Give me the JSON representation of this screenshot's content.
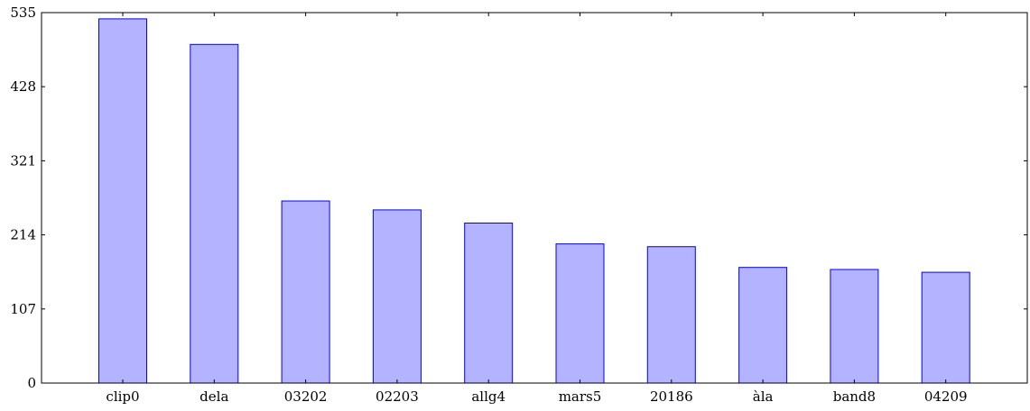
{
  "chart_data": {
    "type": "bar",
    "categories": [
      "clip0",
      "dela",
      "03202",
      "02203",
      "allg4",
      "mars5",
      "20186",
      "àla",
      "band8",
      "04209"
    ],
    "values": [
      526,
      489,
      263,
      250,
      231,
      201,
      197,
      167,
      164,
      160
    ],
    "title": "",
    "xlabel": "",
    "ylabel": "",
    "ylim": [
      0,
      535
    ],
    "yticks": [
      0,
      107,
      214,
      321,
      428,
      535
    ],
    "grid": false,
    "legend": "none",
    "colors": {
      "bar_fill": "#b3b3ff",
      "bar_stroke": "#0000ff",
      "axis": "#000000"
    }
  }
}
